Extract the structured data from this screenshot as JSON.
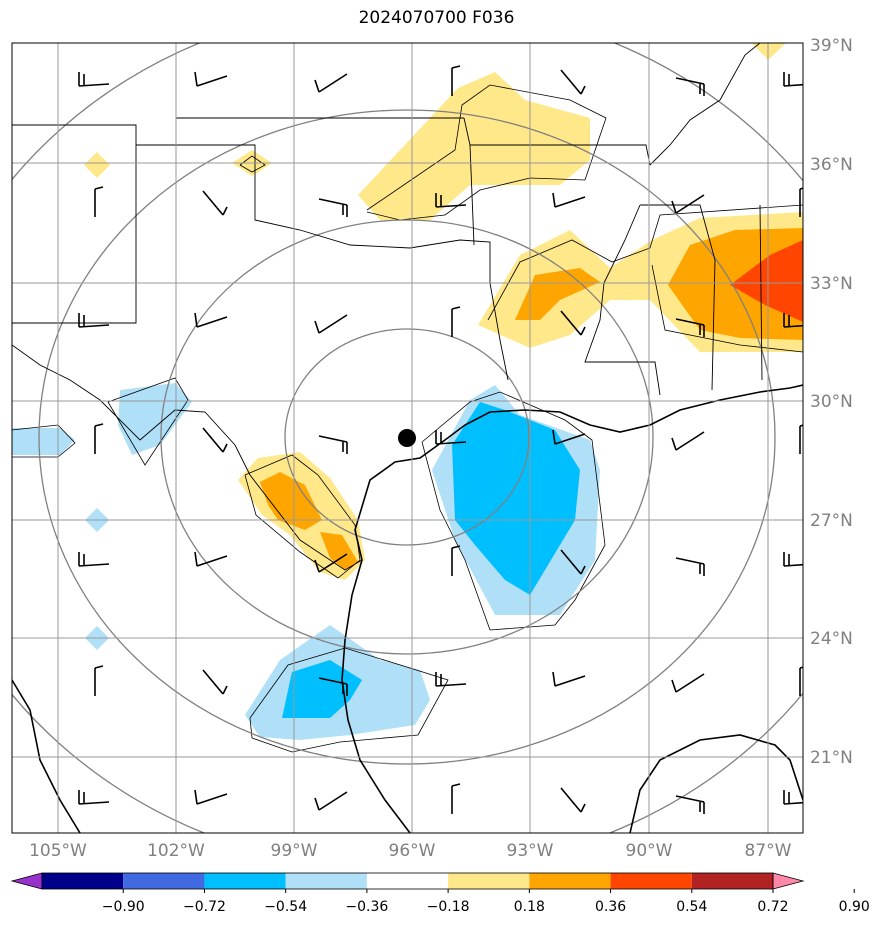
{
  "title": "2024070700 F036",
  "map": {
    "lon_range": [
      -106,
      -86.5
    ],
    "lat_range": [
      19,
      39
    ],
    "gridlines": true,
    "center_marker": {
      "lon": -96,
      "lat": 29.5
    },
    "latitude_labels": [
      {
        "lat": 39,
        "text": "39°N"
      },
      {
        "lat": 36,
        "text": "36°N"
      },
      {
        "lat": 33,
        "text": "33°N"
      },
      {
        "lat": 30,
        "text": "30°N"
      },
      {
        "lat": 27,
        "text": "27°N"
      },
      {
        "lat": 24,
        "text": "24°N"
      },
      {
        "lat": 21,
        "text": "21°N"
      }
    ],
    "longitude_labels": [
      {
        "lon": -105,
        "text": "105°W"
      },
      {
        "lon": -102,
        "text": "102°W"
      },
      {
        "lon": -99,
        "text": "99°W"
      },
      {
        "lon": -96,
        "text": "96°W"
      },
      {
        "lon": -93,
        "text": "93°W"
      },
      {
        "lon": -90,
        "text": "90°W"
      },
      {
        "lon": -87,
        "text": "87°W"
      }
    ]
  },
  "colorbar": {
    "ticks": [
      "−0.90",
      "−0.72",
      "−0.54",
      "−0.36",
      "−0.18",
      "0.18",
      "0.36",
      "0.54",
      "0.72",
      "0.90"
    ],
    "colors": [
      "#9932CC",
      "#00008B",
      "#4169E1",
      "#00BFFF",
      "#B0E0F8",
      "#FFFFFF",
      "#FFE88A",
      "#FFA500",
      "#FF4500",
      "#B22222",
      "#FF88AA"
    ]
  },
  "colors": {
    "land": "#ffffff",
    "border": "#000000",
    "grid": "#999999",
    "range_ring": "#808080"
  }
}
